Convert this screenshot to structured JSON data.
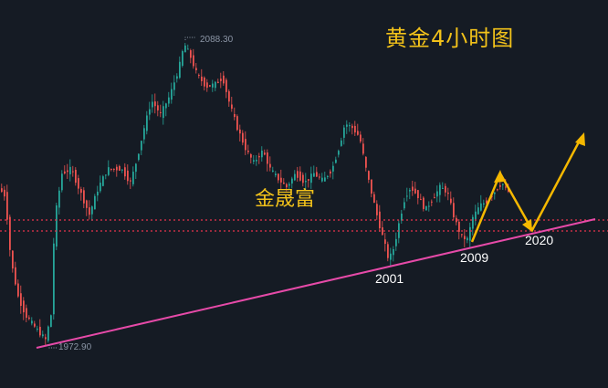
{
  "chart_data": {
    "type": "candlestick",
    "title": "黄金4小时图",
    "watermark": "金晟富",
    "price_high_label": "2088.30",
    "price_low_label": "1972.90",
    "ylim": [
      1965,
      2095
    ],
    "resistance_band": [
      2022,
      2018
    ],
    "trendline": {
      "color": "#e64aa8",
      "label_points": [
        "2001",
        "2009",
        "2020"
      ]
    },
    "projection_color": "#f5b800",
    "colors": {
      "up": "#26a69a",
      "down": "#ef5350",
      "background": "#151b24",
      "dotted_lines": "#e8344c"
    }
  }
}
